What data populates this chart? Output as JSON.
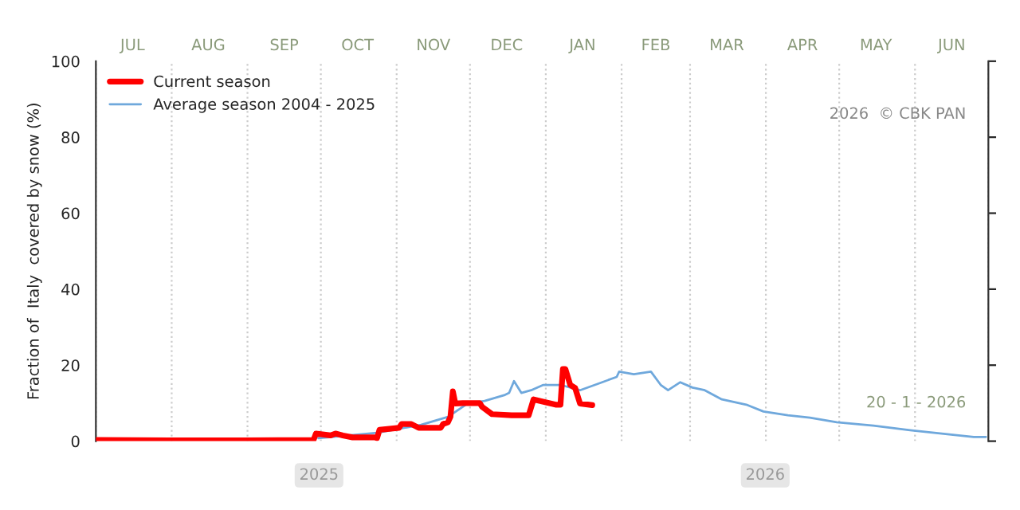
{
  "chart_data": {
    "type": "line",
    "ylabel": "Fraction of  Italy  covered by snow (%)",
    "xlim": [
      "2025-07-01",
      "2026-07-01"
    ],
    "ylim": [
      0,
      100
    ],
    "yticks": [
      0,
      20,
      40,
      60,
      80,
      100
    ],
    "xticks": [
      {
        "value": "2025-07-01",
        "label": null
      },
      {
        "value": "2025-07-16",
        "label": "JUL"
      },
      {
        "value": "2025-08-01",
        "label": null
      },
      {
        "value": "2025-08-16",
        "label": "AUG"
      },
      {
        "value": "2025-09-01",
        "label": null
      },
      {
        "value": "2025-09-16",
        "label": "SEP"
      },
      {
        "value": "2025-10-01",
        "label": null
      },
      {
        "value": "2025-10-16",
        "label": "OCT"
      },
      {
        "value": "2025-11-01",
        "label": null
      },
      {
        "value": "2025-11-16",
        "label": "NOV"
      },
      {
        "value": "2025-12-01",
        "label": null
      },
      {
        "value": "2025-12-16",
        "label": "DEC"
      },
      {
        "value": "2026-01-01",
        "label": null
      },
      {
        "value": "2026-01-16",
        "label": "JAN"
      },
      {
        "value": "2026-02-01",
        "label": null
      },
      {
        "value": "2026-02-15",
        "label": "FEB"
      },
      {
        "value": "2026-03-01",
        "label": null
      },
      {
        "value": "2026-03-16",
        "label": "MAR"
      },
      {
        "value": "2026-04-01",
        "label": null
      },
      {
        "value": "2026-04-16",
        "label": "APR"
      },
      {
        "value": "2026-05-01",
        "label": null
      },
      {
        "value": "2026-05-16",
        "label": "MAY"
      },
      {
        "value": "2026-06-01",
        "label": null
      },
      {
        "value": "2026-06-16",
        "label": "JUN"
      },
      {
        "value": "2026-07-01",
        "label": null
      }
    ],
    "grid": "x",
    "legend": "top left",
    "annotations": [
      "2026  © CBK PAN",
      "20 - 1 - 2026",
      "2025",
      "2026"
    ],
    "series": [
      {
        "name": "Current season",
        "color": "#ff0000",
        "x": [
          "2025-07-01",
          "2025-07-31",
          "2025-08-30",
          "2025-09-28",
          "2025-09-29",
          "2025-10-05",
          "2025-10-07",
          "2025-10-10",
          "2025-10-14",
          "2025-10-23",
          "2025-10-24",
          "2025-10-25",
          "2025-11-02",
          "2025-11-03",
          "2025-11-07",
          "2025-11-10",
          "2025-11-19",
          "2025-11-20",
          "2025-11-22",
          "2025-11-23",
          "2025-11-24",
          "2025-11-25",
          "2025-11-28",
          "2025-12-05",
          "2025-12-06",
          "2025-12-10",
          "2025-12-18",
          "2025-12-25",
          "2025-12-27",
          "2026-01-05",
          "2026-01-07",
          "2026-01-08",
          "2026-01-09",
          "2026-01-11",
          "2026-01-13",
          "2026-01-15",
          "2026-01-20"
        ],
        "values": [
          0.3,
          0.2,
          0.2,
          0.3,
          2,
          1.5,
          2,
          1.5,
          1.0,
          1.0,
          0.8,
          3,
          3.5,
          4.5,
          4.5,
          3.5,
          3.5,
          4.5,
          5,
          6.4,
          13.1,
          9.9,
          10,
          10,
          9,
          7.1,
          6.8,
          6.8,
          11,
          9.6,
          9.6,
          19,
          19,
          14.8,
          14,
          9.9,
          9.5
        ]
      },
      {
        "name": "Average season 2004 - 2025",
        "color": "#6fa8dc",
        "x": [
          "2025-09-30",
          "2025-10-24",
          "2025-11-11",
          "2025-11-22",
          "2025-11-30",
          "2025-12-07",
          "2025-12-15",
          "2025-12-17",
          "2025-12-19",
          "2025-12-22",
          "2025-12-26",
          "2025-12-31",
          "2026-01-07",
          "2026-01-15",
          "2026-01-24",
          "2026-01-30",
          "2026-01-31",
          "2026-02-06",
          "2026-02-13",
          "2026-02-17",
          "2026-02-20",
          "2026-02-25",
          "2026-03-02",
          "2026-03-07",
          "2026-03-14",
          "2026-03-24",
          "2026-03-31",
          "2026-04-10",
          "2026-04-19",
          "2026-04-30",
          "2026-05-15",
          "2026-05-30",
          "2026-06-15",
          "2026-06-25",
          "2026-06-30"
        ],
        "values": [
          0.8,
          2.2,
          4.3,
          6.4,
          9.9,
          10.6,
          12.1,
          12.7,
          15.8,
          12.7,
          13.4,
          14.8,
          14.8,
          13.4,
          15.5,
          16.9,
          18.3,
          17.6,
          18.3,
          14.8,
          13.4,
          15.5,
          14.1,
          13.4,
          11,
          9.6,
          7.8,
          6.8,
          6.2,
          5.0,
          4.1,
          2.9,
          1.8,
          1.1,
          1.1
        ]
      }
    ]
  }
}
